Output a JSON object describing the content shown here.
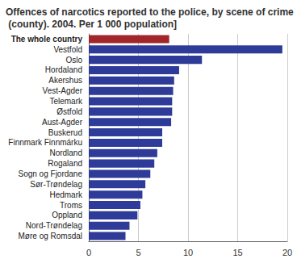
{
  "chart_data": {
    "type": "bar",
    "orientation": "horizontal",
    "title": "Offences of narcotics reported to the police, by scene of crime (county). 2004. Per 1 000 population]",
    "categories": [
      "The whole country",
      "Vestfold",
      "Oslo",
      "Hordaland",
      "Akershus",
      "Vest-Agder",
      "Telemark",
      "Østfold",
      "Aust-Agder",
      "Buskerud",
      "Finnmark Finnmárku",
      "Nordland",
      "Rogaland",
      "Sogn og Fjordane",
      "Sør-Trøndelag",
      "Hedmark",
      "Troms",
      "Oppland",
      "Nord-Trøndelag",
      "Møre og Romsdal"
    ],
    "values": [
      8.1,
      19.5,
      11.4,
      9.1,
      8.6,
      8.5,
      8.4,
      8.4,
      8.3,
      7.4,
      7.4,
      6.9,
      6.6,
      6.2,
      5.7,
      5.4,
      5.2,
      4.9,
      4.1,
      3.7
    ],
    "colors": [
      "#a0262a",
      "#2e3b98",
      "#2e3b98",
      "#2e3b98",
      "#2e3b98",
      "#2e3b98",
      "#2e3b98",
      "#2e3b98",
      "#2e3b98",
      "#2e3b98",
      "#2e3b98",
      "#2e3b98",
      "#2e3b98",
      "#2e3b98",
      "#2e3b98",
      "#2e3b98",
      "#2e3b98",
      "#2e3b98",
      "#2e3b98",
      "#2e3b98"
    ],
    "xlim": [
      0,
      20
    ],
    "xticks": [
      0,
      5,
      10,
      15,
      20
    ],
    "grid": true
  }
}
